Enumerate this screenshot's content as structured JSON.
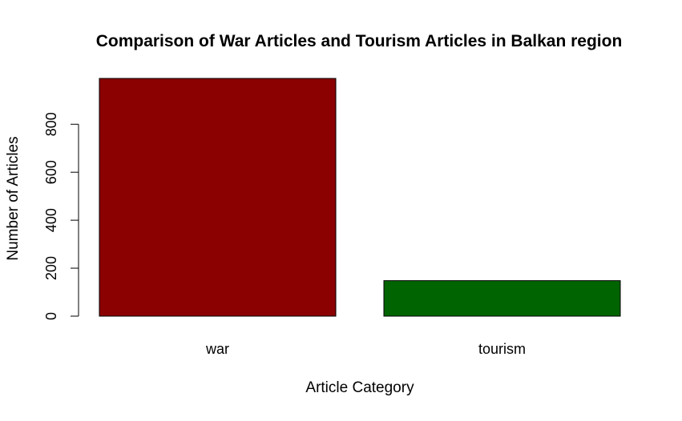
{
  "chart_data": {
    "type": "bar",
    "title": "Comparison of War Articles and Tourism Articles in Balkan region",
    "xlabel": "Article Category",
    "ylabel": "Number of Articles",
    "categories": [
      "war",
      "tourism"
    ],
    "values": [
      991,
      148
    ],
    "colors": [
      "#8B0000",
      "#006400"
    ],
    "yticks": [
      0,
      200,
      400,
      600,
      800
    ],
    "ylim": [
      0,
      991
    ],
    "grid": false,
    "legend": "none"
  }
}
